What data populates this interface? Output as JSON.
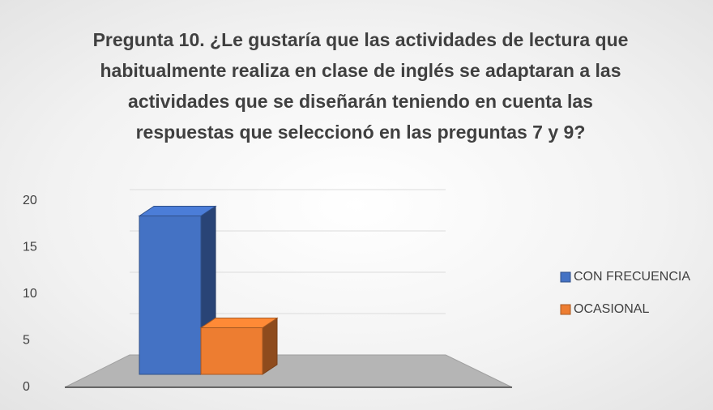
{
  "chart_data": {
    "type": "bar3d",
    "title": "Pregunta 10. ¿Le gustaría que las actividades de lectura que habitualmente realiza en clase de inglés se adaptaran a las actividades que se diseñarán teniendo en cuenta las respuestas que seleccionó en las preguntas 7 y 9?",
    "series": [
      {
        "name": "CON FRECUENCIA",
        "color": "#4472c4",
        "values": [
          17
        ]
      },
      {
        "name": "OCASIONAL",
        "color": "#ed7d31",
        "values": [
          5
        ]
      }
    ],
    "ylim": [
      0,
      20
    ],
    "yticks": [
      0,
      5,
      10,
      15,
      20
    ],
    "grid": true,
    "legend": "right"
  }
}
